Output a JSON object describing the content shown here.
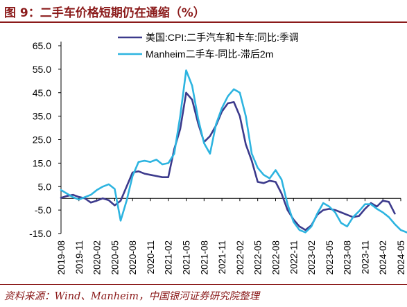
{
  "header": {
    "title": "图 9：二手车价格短期仍在通缩（%）"
  },
  "footer": {
    "source": "资料来源：Wind、Manheim，中国银河证券研究院整理"
  },
  "chart_data": {
    "type": "line",
    "y_ticks": [
      "65.0",
      "55.0",
      "45.0",
      "35.0",
      "25.0",
      "15.0",
      "5.0",
      "-5.0",
      "-15.0"
    ],
    "x_ticks": [
      "2019-08",
      "2019-11",
      "2020-02",
      "2020-05",
      "2020-08",
      "2020-11",
      "2021-02",
      "2021-05",
      "2021-08",
      "2021-11",
      "2022-02",
      "2022-05",
      "2022-08",
      "2022-11",
      "2023-02",
      "2023-05",
      "2023-08",
      "2023-11",
      "2024-02",
      "2024-05"
    ],
    "ylim": [
      -15,
      65
    ],
    "legend_position": "top",
    "series": [
      {
        "name": "美国:CPI:二手汽车和卡车:同比:季调",
        "color": "#3c3a8c",
        "x": [
          "2019-08",
          "2019-09",
          "2019-10",
          "2019-11",
          "2019-12",
          "2020-01",
          "2020-02",
          "2020-03",
          "2020-04",
          "2020-05",
          "2020-06",
          "2020-07",
          "2020-08",
          "2020-09",
          "2020-10",
          "2020-11",
          "2020-12",
          "2021-01",
          "2021-02",
          "2021-03",
          "2021-04",
          "2021-05",
          "2021-06",
          "2021-07",
          "2021-08",
          "2021-09",
          "2021-10",
          "2021-11",
          "2021-12",
          "2022-01",
          "2022-02",
          "2022-03",
          "2022-04",
          "2022-05",
          "2022-06",
          "2022-07",
          "2022-08",
          "2022-09",
          "2022-10",
          "2022-11",
          "2022-12",
          "2023-01",
          "2023-02",
          "2023-03",
          "2023-04",
          "2023-05",
          "2023-06",
          "2023-07",
          "2023-08",
          "2023-09",
          "2023-10",
          "2023-11",
          "2023-12",
          "2024-01",
          "2024-02",
          "2024-03",
          "2024-04"
        ],
        "values": [
          0.2,
          1.0,
          1.5,
          0.6,
          0.0,
          -1.8,
          -1.0,
          0.0,
          -0.8,
          -3.0,
          -1.0,
          5.0,
          11.0,
          11.5,
          10.5,
          10.0,
          9.5,
          9.0,
          9.0,
          21.0,
          29.5,
          45.0,
          42.0,
          32.0,
          24.0,
          26.5,
          31.0,
          37.0,
          40.5,
          41.0,
          35.0,
          23.0,
          16.0,
          7.0,
          6.5,
          7.5,
          7.0,
          2.0,
          -5.0,
          -9.0,
          -12.0,
          -13.5,
          -11.5,
          -7.0,
          -5.0,
          -4.5,
          -5.0,
          -6.0,
          -7.0,
          -8.0,
          -7.5,
          -4.5,
          -2.0,
          -3.5,
          -1.0,
          -1.5,
          -6.5
        ]
      },
      {
        "name": "Manheim二手车-同比-滞后2m",
        "color": "#2db4e0",
        "x": [
          "2019-08",
          "2019-09",
          "2019-10",
          "2019-11",
          "2019-12",
          "2020-01",
          "2020-02",
          "2020-03",
          "2020-04",
          "2020-05",
          "2020-06",
          "2020-07",
          "2020-08",
          "2020-09",
          "2020-10",
          "2020-11",
          "2020-12",
          "2021-01",
          "2021-02",
          "2021-03",
          "2021-04",
          "2021-05",
          "2021-06",
          "2021-07",
          "2021-08",
          "2021-09",
          "2021-10",
          "2021-11",
          "2021-12",
          "2022-01",
          "2022-02",
          "2022-03",
          "2022-04",
          "2022-05",
          "2022-06",
          "2022-07",
          "2022-08",
          "2022-09",
          "2022-10",
          "2022-11",
          "2022-12",
          "2023-01",
          "2023-02",
          "2023-03",
          "2023-04",
          "2023-05",
          "2023-06",
          "2023-07",
          "2023-08",
          "2023-09",
          "2023-10",
          "2023-11",
          "2023-12",
          "2024-01",
          "2024-02",
          "2024-03",
          "2024-04",
          "2024-05",
          "2024-06"
        ],
        "values": [
          3.5,
          2.0,
          0.5,
          -0.5,
          0.5,
          1.5,
          3.5,
          5.0,
          6.0,
          4.0,
          -9.5,
          -1.0,
          9.5,
          15.5,
          16.0,
          15.5,
          16.5,
          14.5,
          15.0,
          19.0,
          35.0,
          54.5,
          48.0,
          34.0,
          23.5,
          19.0,
          31.5,
          38.5,
          43.5,
          46.5,
          45.0,
          35.0,
          19.0,
          13.0,
          10.0,
          8.5,
          12.0,
          8.0,
          -2.5,
          -10.0,
          -13.5,
          -14.5,
          -12.0,
          -6.5,
          -2.0,
          -3.5,
          -6.0,
          -10.5,
          -12.0,
          -8.0,
          -5.5,
          -2.5,
          -2.5,
          -4.5,
          -6.0,
          -8.0,
          -11.0,
          -13.5,
          -14.5
        ]
      }
    ]
  }
}
